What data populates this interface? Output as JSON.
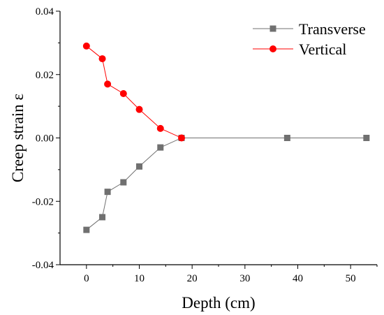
{
  "chart_data": {
    "type": "line",
    "title": "",
    "xlabel": "Depth (cm)",
    "ylabel": "Creep strain ε",
    "xlim": [
      -5,
      55
    ],
    "ylim": [
      -0.04,
      0.04
    ],
    "x_ticks": [
      "0",
      "10",
      "20",
      "30",
      "40",
      "50"
    ],
    "y_ticks": [
      "-0.04",
      "-0.02",
      "0.00",
      "0.02",
      "0.04"
    ],
    "grid": false,
    "legend_position": "top-right",
    "series": [
      {
        "name": "Transverse",
        "color": "#707070",
        "marker": "square",
        "x": [
          0,
          3,
          4,
          7,
          10,
          14,
          18,
          38,
          53
        ],
        "y": [
          -0.029,
          -0.025,
          -0.017,
          -0.014,
          -0.009,
          -0.003,
          0.0,
          0.0,
          0.0
        ]
      },
      {
        "name": "Vertical",
        "color": "#ff0000",
        "marker": "circle",
        "x": [
          0,
          3,
          4,
          7,
          10,
          14,
          18
        ],
        "y": [
          0.029,
          0.025,
          0.017,
          0.014,
          0.009,
          0.003,
          0.0
        ]
      }
    ]
  }
}
